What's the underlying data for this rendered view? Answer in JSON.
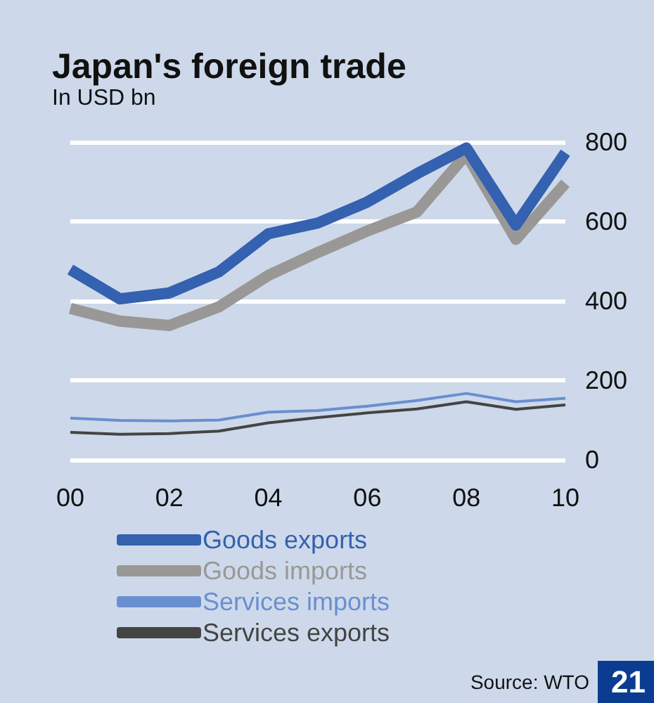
{
  "chart_data": {
    "type": "line",
    "title": "Japan's foreign trade",
    "subtitle": "In USD bn",
    "x": [
      2000,
      2001,
      2002,
      2003,
      2004,
      2005,
      2006,
      2007,
      2008,
      2009,
      2010
    ],
    "series": [
      {
        "name": "Goods exports",
        "color": "#3461b0",
        "values": [
          479,
          405,
          420,
          473,
          569,
          596,
          649,
          720,
          785,
          591,
          773
        ]
      },
      {
        "name": "Goods imports",
        "color": "#999896",
        "values": [
          381,
          349,
          338,
          385,
          464,
          522,
          576,
          624,
          769,
          555,
          696
        ]
      },
      {
        "name": "Services imports",
        "color": "#6a8fd0",
        "values": [
          105,
          99,
          98,
          100,
          120,
          124,
          135,
          149,
          167,
          146,
          155
        ]
      },
      {
        "name": "Services exports",
        "color": "#444444",
        "values": [
          69,
          64,
          66,
          72,
          93,
          106,
          118,
          128,
          146,
          127,
          138
        ]
      }
    ],
    "xlim": [
      2000,
      2010
    ],
    "xticks": [
      {
        "value": 2000,
        "label": "00"
      },
      {
        "value": 2002,
        "label": "02"
      },
      {
        "value": 2004,
        "label": "04"
      },
      {
        "value": 2006,
        "label": "06"
      },
      {
        "value": 2008,
        "label": "08"
      },
      {
        "value": 2010,
        "label": "10"
      }
    ],
    "ylim": [
      0,
      800
    ],
    "yticks": [
      0,
      200,
      400,
      600,
      800
    ],
    "grid": "y",
    "legend": "bottom",
    "marker": "none",
    "line_style": "solid",
    "annotations": [
      "Source: WTO",
      "21"
    ]
  }
}
